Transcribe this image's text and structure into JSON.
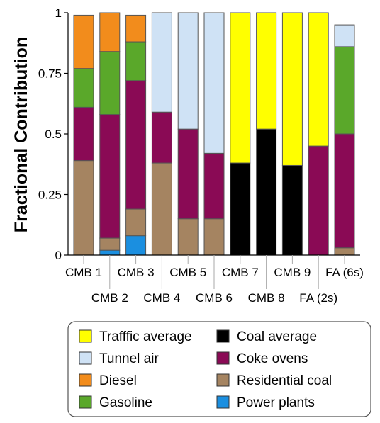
{
  "chart_data": {
    "type": "bar",
    "stacked": true,
    "ylabel": "Fractional Contribution",
    "xlabel": "",
    "ylim": [
      0,
      1
    ],
    "yticks": [
      "0",
      "0.25",
      "0.5",
      "0.75",
      "1"
    ],
    "grid": false,
    "legend_position": "bottom",
    "categories": [
      "CMB 1",
      "CMB 2",
      "CMB 3",
      "CMB 4",
      "CMB 5",
      "CMB 6",
      "CMB 7",
      "CMB 8",
      "CMB 9",
      "FA (2s)",
      "FA (6s)"
    ],
    "series": [
      {
        "name": "Power plants",
        "color": "#1b8fe0",
        "values": [
          0,
          0.02,
          0.08,
          0,
          0,
          0,
          0,
          0,
          0,
          0,
          0
        ]
      },
      {
        "name": "Residential coal",
        "color": "#a58461",
        "values": [
          0.39,
          0.05,
          0.11,
          0.38,
          0.15,
          0.15,
          0,
          0,
          0,
          0,
          0.03
        ]
      },
      {
        "name": "Coke ovens",
        "color": "#8a0a55",
        "values": [
          0.22,
          0.51,
          0.53,
          0.21,
          0.37,
          0.27,
          0,
          0,
          0,
          0.45,
          0.47
        ]
      },
      {
        "name": "Coal average",
        "color": "#000000",
        "values": [
          0,
          0,
          0,
          0,
          0,
          0,
          0.38,
          0.52,
          0.37,
          0,
          0
        ]
      },
      {
        "name": "Gasoline",
        "color": "#5aa82a",
        "values": [
          0.16,
          0.26,
          0.16,
          0,
          0,
          0,
          0,
          0,
          0,
          0,
          0.36
        ]
      },
      {
        "name": "Diesel",
        "color": "#f28c1c",
        "values": [
          0.22,
          0.16,
          0.11,
          0,
          0,
          0,
          0,
          0,
          0,
          0,
          0
        ]
      },
      {
        "name": "Tunnel air",
        "color": "#cfe2f5",
        "values": [
          0,
          0,
          0,
          0.41,
          0.48,
          0.58,
          0,
          0,
          0,
          0,
          0.09
        ]
      },
      {
        "name": "Trafffic average",
        "color": "#ffff00",
        "values": [
          0,
          0,
          0,
          0,
          0,
          0,
          0.62,
          0.48,
          0.63,
          0.55,
          0
        ]
      }
    ],
    "legend_order": [
      "Trafffic average",
      "Coal average",
      "Tunnel air",
      "Coke ovens",
      "Diesel",
      "Residential coal",
      "Gasoline",
      "Power plants"
    ]
  }
}
